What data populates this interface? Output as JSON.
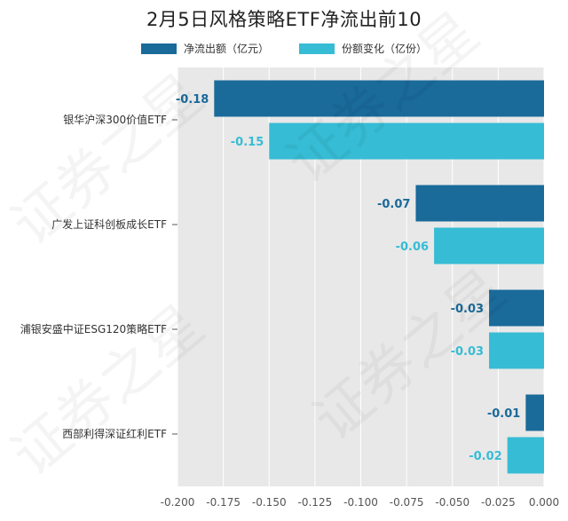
{
  "title": "2月5日风格策略ETF净流出前10",
  "watermark": "证券之星",
  "colors": {
    "series_1": "#1a6a9a",
    "series_2": "#36bcd4",
    "plot_bg": "#e8e8e8",
    "grid": "#ffffff"
  },
  "chart_data": {
    "type": "bar",
    "orientation": "horizontal",
    "categories": [
      "银华沪深300价值ETF",
      "广发上证科创板成长ETF",
      "浦银安盛中证ESG120策略ETF",
      "西部利得深证红利ETF"
    ],
    "series": [
      {
        "name": "净流出额（亿元）",
        "values": [
          -0.18,
          -0.07,
          -0.03,
          -0.01
        ],
        "labels": [
          "-0.18",
          "-0.07",
          "-0.03",
          "-0.01"
        ]
      },
      {
        "name": "份额变化（亿份）",
        "values": [
          -0.15,
          -0.06,
          -0.03,
          -0.02
        ],
        "labels": [
          "-0.15",
          "-0.06",
          "-0.03",
          "-0.02"
        ]
      }
    ],
    "xlim": [
      -0.2,
      0.0
    ],
    "ticks": [
      "-0.200",
      "-0.175",
      "-0.150",
      "-0.125",
      "-0.100",
      "-0.075",
      "-0.050",
      "-0.025",
      "0.000"
    ],
    "tick_values": [
      -0.2,
      -0.175,
      -0.15,
      -0.125,
      -0.1,
      -0.075,
      -0.05,
      -0.025,
      0.0
    ],
    "grid": true,
    "legend_position": "top-center"
  }
}
